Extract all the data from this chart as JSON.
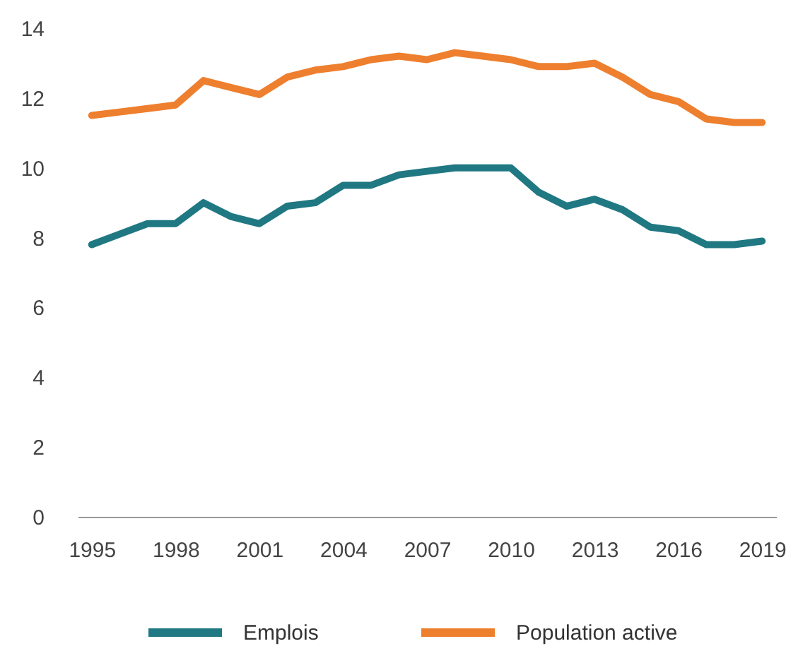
{
  "chart_data": {
    "type": "line",
    "x": [
      1995,
      1996,
      1997,
      1998,
      1999,
      2000,
      2001,
      2002,
      2003,
      2004,
      2005,
      2006,
      2007,
      2008,
      2009,
      2010,
      2011,
      2012,
      2013,
      2014,
      2015,
      2016,
      2017,
      2018,
      2019
    ],
    "xlim": [
      1994.5,
      2019.5
    ],
    "xticks": [
      1995,
      1998,
      2001,
      2004,
      2007,
      2010,
      2013,
      2016,
      2019
    ],
    "ylim": [
      0,
      14
    ],
    "yticks": [
      0,
      2,
      4,
      6,
      8,
      10,
      12,
      14
    ],
    "legend": "bottom",
    "line_style": "solid",
    "series": [
      {
        "name": "Emplois",
        "color": "#1f7882",
        "values": [
          7.8,
          8.1,
          8.4,
          8.4,
          9.0,
          8.6,
          8.4,
          8.9,
          9.0,
          9.5,
          9.5,
          9.8,
          9.9,
          10.0,
          10.0,
          10.0,
          9.3,
          8.9,
          9.1,
          8.8,
          8.3,
          8.2,
          7.8,
          7.8,
          7.9
        ]
      },
      {
        "name": "Population active",
        "color": "#ee7f2e",
        "values": [
          11.5,
          11.6,
          11.7,
          11.8,
          12.5,
          12.3,
          12.1,
          12.6,
          12.8,
          12.9,
          13.1,
          13.2,
          13.1,
          13.3,
          13.2,
          13.1,
          12.9,
          12.9,
          13.0,
          12.6,
          12.1,
          11.9,
          11.4,
          11.3,
          11.3
        ]
      }
    ]
  }
}
